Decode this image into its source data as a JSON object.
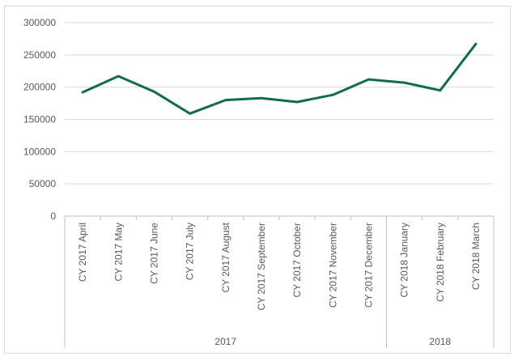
{
  "chart_data": {
    "type": "line",
    "categories": [
      "CY 2017 April",
      "CY 2017 May",
      "CY 2017 June",
      "CY 2017 July",
      "CY 2017 August",
      "CY 2017 September",
      "CY 2017 October",
      "CY 2017 November",
      "CY 2017 December",
      "CY 2018 January",
      "CY 2018 February",
      "CY 2018 March"
    ],
    "category_groups": [
      {
        "label": "2017",
        "count": 9
      },
      {
        "label": "2018",
        "count": 3
      }
    ],
    "series": [
      {
        "values": [
          192000,
          217000,
          193000,
          159000,
          180000,
          183000,
          177000,
          188000,
          212000,
          207000,
          195000,
          267000
        ]
      }
    ],
    "ylim": [
      0,
      300000
    ],
    "yticks": [
      0,
      50000,
      100000,
      150000,
      200000,
      250000,
      300000
    ],
    "grid": true,
    "legend": "none",
    "title": "",
    "xlabel": "",
    "ylabel": "",
    "colors": {
      "line": "#0f6b52",
      "grid": "#d9d9d9",
      "axis": "#bfbfbf",
      "text": "#595959"
    }
  }
}
